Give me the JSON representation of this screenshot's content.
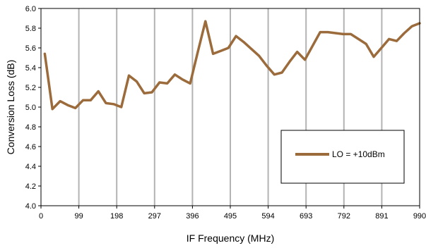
{
  "chart_data": {
    "type": "line",
    "xlabel": "IF Frequency (MHz)",
    "ylabel": "Conversion Loss (dB)",
    "xlim": [
      0,
      990
    ],
    "ylim": [
      4.0,
      6.0
    ],
    "x_ticks": [
      0,
      99,
      198,
      297,
      396,
      495,
      594,
      693,
      792,
      891,
      990
    ],
    "y_ticks": [
      4.0,
      4.2,
      4.4,
      4.6,
      4.8,
      5.0,
      5.2,
      5.4,
      5.6,
      5.8,
      6.0
    ],
    "x_tick_labels": [
      "0",
      "99",
      "198",
      "297",
      "396",
      "495",
      "594",
      "693",
      "792",
      "891",
      "990"
    ],
    "y_tick_labels": [
      "4.0",
      "4.2",
      "4.4",
      "4.6",
      "4.8",
      "5.0",
      "5.2",
      "5.4",
      "5.6",
      "5.8",
      "6.0"
    ],
    "grid": "vertical",
    "legend_position": "right",
    "series": [
      {
        "name": "LO = +10dBm",
        "color": "#9b6b3c",
        "x": [
          10,
          30,
          50,
          70,
          90,
          110,
          130,
          150,
          170,
          190,
          210,
          230,
          250,
          270,
          290,
          310,
          330,
          350,
          370,
          390,
          410,
          430,
          450,
          470,
          490,
          510,
          530,
          550,
          570,
          590,
          610,
          630,
          650,
          670,
          690,
          710,
          730,
          750,
          770,
          790,
          810,
          830,
          850,
          870,
          890,
          910,
          930,
          950,
          970,
          990
        ],
        "y": [
          5.54,
          4.98,
          5.06,
          5.02,
          4.99,
          5.07,
          5.07,
          5.16,
          5.04,
          5.03,
          5.0,
          5.32,
          5.26,
          5.14,
          5.15,
          5.25,
          5.24,
          5.33,
          5.28,
          5.24,
          5.56,
          5.87,
          5.54,
          5.57,
          5.6,
          5.72,
          5.66,
          5.59,
          5.52,
          5.42,
          5.33,
          5.35,
          5.46,
          5.56,
          5.48,
          5.62,
          5.76,
          5.76,
          5.75,
          5.74,
          5.74,
          5.69,
          5.64,
          5.51,
          5.6,
          5.69,
          5.67,
          5.75,
          5.82,
          5.85
        ]
      }
    ]
  }
}
